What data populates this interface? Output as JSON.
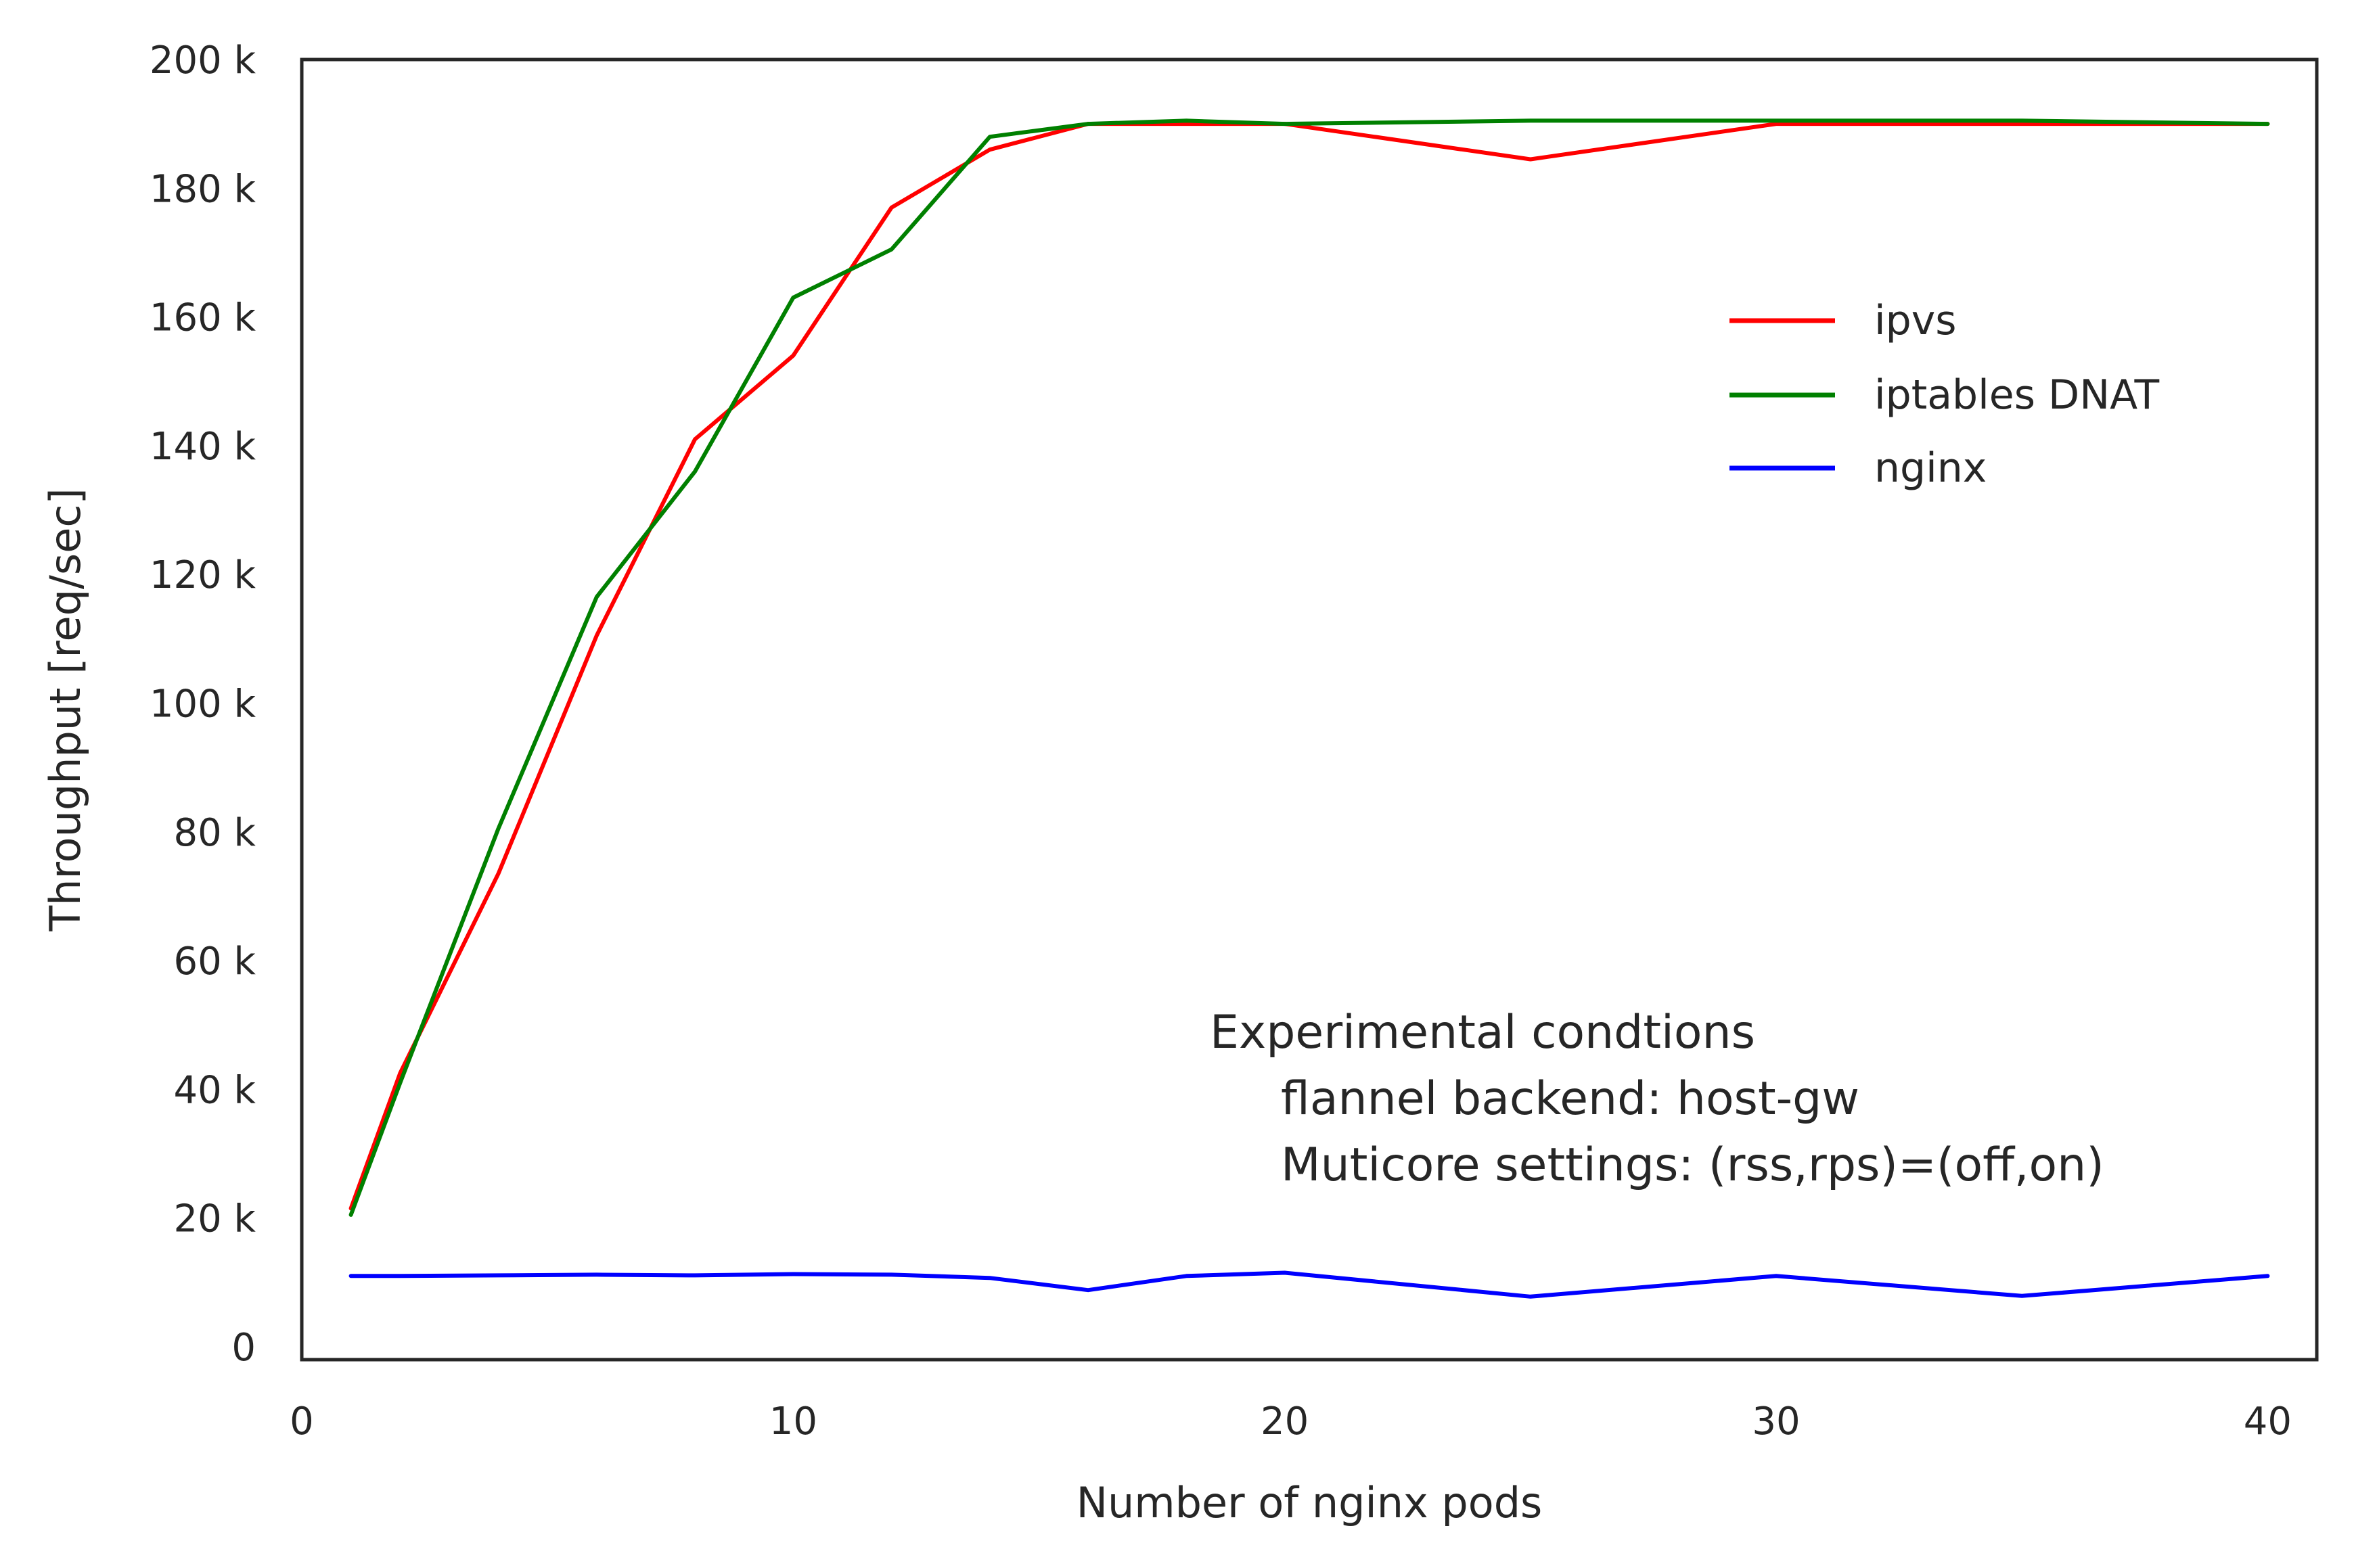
{
  "chart_data": {
    "type": "line",
    "xlabel": "Number of nginx pods",
    "ylabel": "Throughput [req/sec]",
    "xlim": [
      0,
      41
    ],
    "ylim": [
      -2000,
      200000
    ],
    "xticks": [
      0,
      10,
      20,
      30,
      40
    ],
    "xtick_labels": [
      "0",
      "10",
      "20",
      "30",
      "40"
    ],
    "yticks": [
      0,
      20000,
      40000,
      60000,
      80000,
      100000,
      120000,
      140000,
      160000,
      180000,
      200000
    ],
    "ytick_labels": [
      "0",
      "20 k",
      "40 k",
      "60 k",
      "80 k",
      "100 k",
      "120 k",
      "140 k",
      "160 k",
      "180 k",
      "200 k"
    ],
    "grid": false,
    "legend_position": "upper-right",
    "series": [
      {
        "name": "ipvs",
        "color": "#ff0000",
        "x": [
          1,
          2,
          4,
          6,
          8,
          10,
          12,
          14,
          16,
          18,
          20,
          25,
          30,
          35,
          40
        ],
        "y": [
          21500,
          42500,
          73500,
          110500,
          141000,
          154000,
          177000,
          186000,
          190000,
          190000,
          190000,
          184500,
          190000,
          190000,
          190000
        ]
      },
      {
        "name": "iptables DNAT",
        "color": "#008000",
        "x": [
          1,
          2,
          4,
          6,
          8,
          10,
          12,
          14,
          16,
          18,
          20,
          25,
          30,
          35,
          40
        ],
        "y": [
          20500,
          41000,
          80500,
          116500,
          136000,
          163000,
          170500,
          188000,
          190000,
          190500,
          190000,
          190500,
          190500,
          190500,
          190000
        ]
      },
      {
        "name": "nginx",
        "color": "#0000ff",
        "x": [
          1,
          2,
          4,
          6,
          8,
          10,
          12,
          14,
          16,
          18,
          20,
          25,
          30,
          35,
          40
        ],
        "y": [
          11000,
          11000,
          11100,
          11200,
          11100,
          11300,
          11200,
          10700,
          8800,
          11000,
          11500,
          7800,
          11000,
          7900,
          11000
        ]
      }
    ],
    "annotation": {
      "line1": "Experimental condtions",
      "line2": "flannel backend: host-gw",
      "line3": "Muticore settings: (rss,rps)=(off,on)"
    }
  }
}
